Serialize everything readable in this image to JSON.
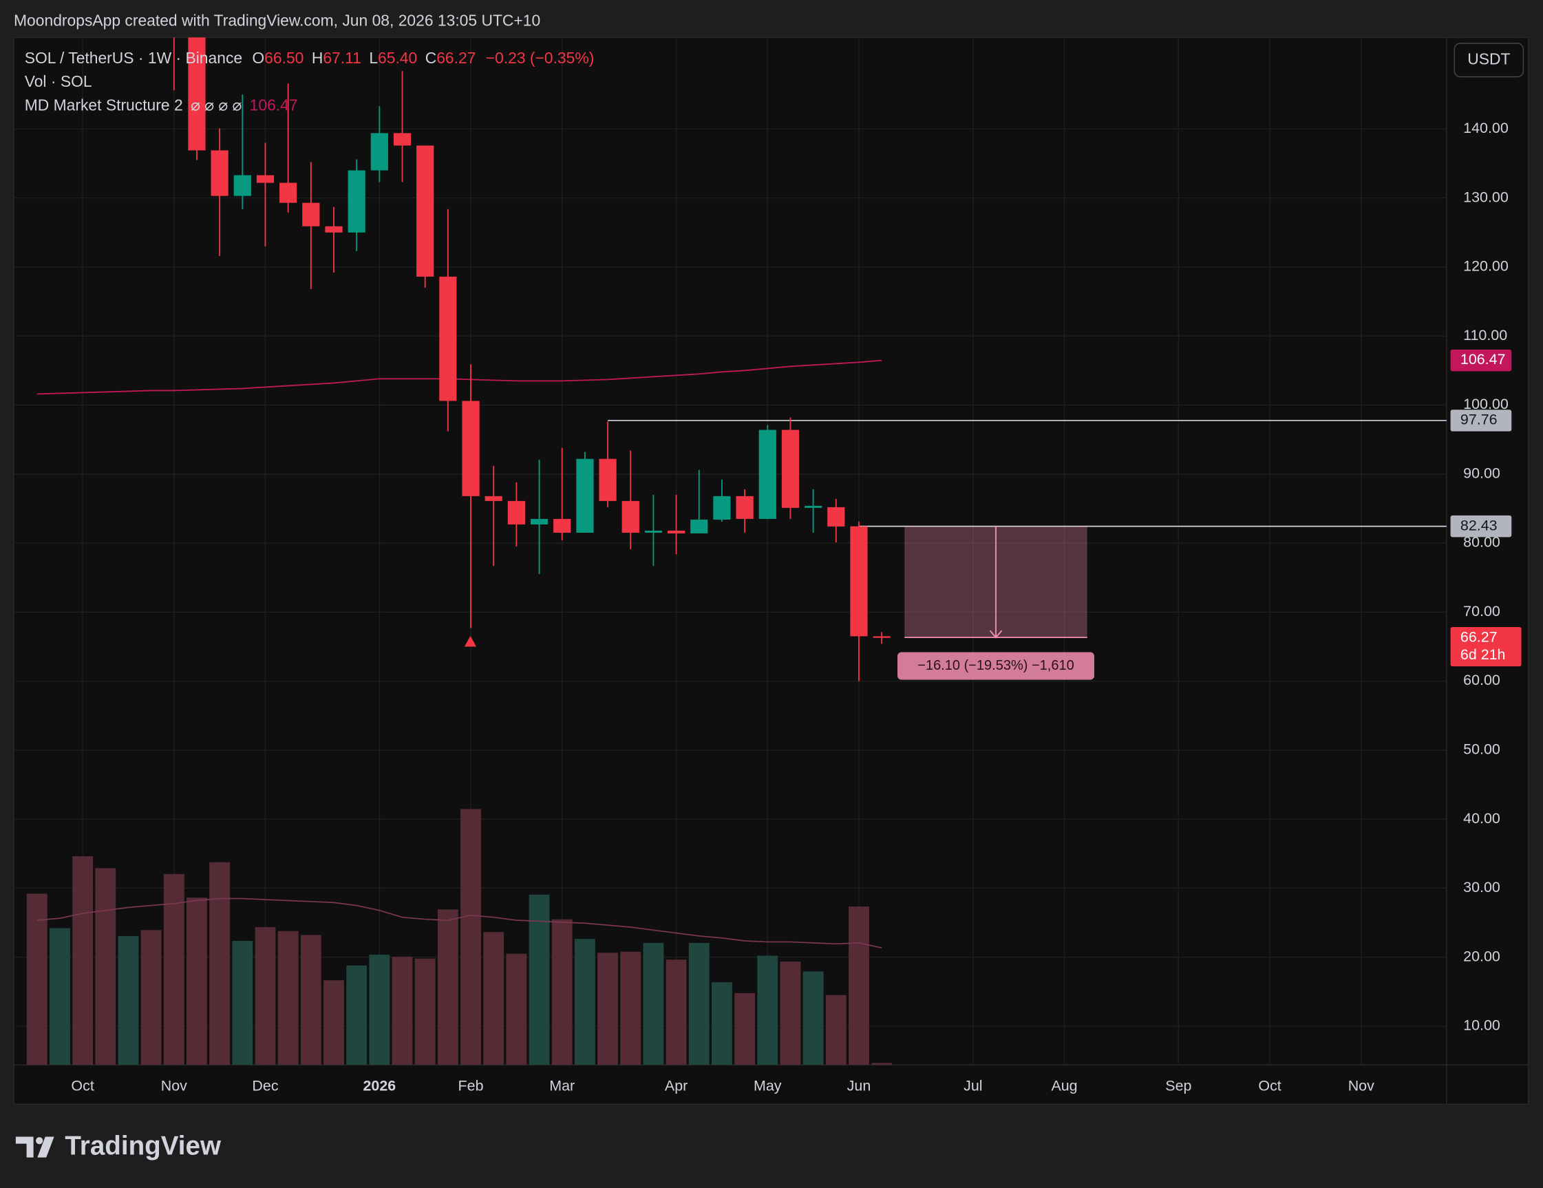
{
  "header": {
    "caption": "MoondropsApp created with TradingView.com, Jun 08, 2026 13:05 UTC+10"
  },
  "legend": {
    "symbol": "SOL / TetherUS · 1W · Binance",
    "ohlc": [
      {
        "key": "O",
        "value": "66.50"
      },
      {
        "key": "H",
        "value": "67.11"
      },
      {
        "key": "L",
        "value": "65.40"
      },
      {
        "key": "C",
        "value": "66.27"
      }
    ],
    "change": "−0.23 (−0.35%)",
    "volume": "Vol · SOL",
    "indicator": "MD Market Structure 2",
    "params": "⌀ ⌀ ⌀ ⌀",
    "indicator_value": "106.47"
  },
  "currency_button": "USDT",
  "logo": "TradingView",
  "chart_data": {
    "type": "candlestick",
    "categories": [
      null,
      null,
      "Oct",
      null,
      null,
      null,
      "Nov",
      null,
      null,
      null,
      "Dec",
      null,
      null,
      null,
      null,
      "2026",
      null,
      null,
      null,
      "Feb",
      null,
      null,
      null,
      "Mar",
      null,
      null,
      null,
      null,
      "Apr",
      null,
      null,
      null,
      "May",
      null,
      null,
      null,
      "Jun",
      null,
      null,
      null,
      null,
      "Jul",
      null,
      null,
      null,
      "Aug",
      null,
      null,
      null,
      null,
      "Sep",
      null,
      null,
      null,
      "Oct",
      null,
      null,
      null,
      "Nov",
      null,
      null,
      null
    ],
    "open": [
      null,
      null,
      null,
      null,
      null,
      null,
      170,
      156,
      136.9,
      130.3,
      133.3,
      132.2,
      129.3,
      125.9,
      125.0,
      134.0,
      139.4,
      137.6,
      118.6,
      100.6,
      86.8,
      86.1,
      82.7,
      83.5,
      81.5,
      92.2,
      86.1,
      81.5,
      81.8,
      81.4,
      83.4,
      86.8,
      83.5,
      96.4,
      85.1,
      85.2,
      82.43,
      66.5,
      null,
      null,
      null,
      null,
      null,
      null,
      null,
      null,
      null,
      null,
      null,
      null,
      null,
      null,
      null,
      null,
      null,
      null,
      null,
      null,
      null,
      null,
      null,
      null
    ],
    "high": [
      null,
      null,
      null,
      null,
      null,
      null,
      175,
      158,
      140.1,
      145.0,
      138.0,
      146.6,
      135.2,
      128.7,
      135.6,
      143.3,
      148.4,
      137.6,
      128.4,
      105.9,
      91.2,
      88.8,
      92.1,
      93.8,
      93.2,
      97.6,
      93.4,
      87.0,
      87.0,
      90.6,
      89.2,
      87.8,
      97.1,
      98.2,
      87.8,
      86.4,
      83.1,
      67.11,
      null,
      null,
      null,
      null,
      null,
      null,
      null,
      null,
      null,
      null,
      null,
      null,
      null,
      null,
      null,
      null,
      null,
      null,
      null,
      null,
      null,
      null,
      null,
      null
    ],
    "low": [
      null,
      null,
      null,
      null,
      null,
      null,
      145.6,
      135.5,
      121.6,
      128.4,
      123.0,
      127.9,
      116.8,
      119.2,
      122.3,
      132.3,
      132.3,
      117.0,
      96.2,
      67.7,
      76.7,
      79.5,
      75.5,
      80.4,
      81.5,
      85.2,
      79.1,
      76.7,
      78.4,
      81.5,
      83.1,
      81.5,
      83.5,
      83.5,
      81.5,
      80.1,
      60.0,
      65.4,
      null,
      null,
      null,
      null,
      null,
      null,
      null,
      null,
      null,
      null,
      null,
      null,
      null,
      null,
      null,
      null,
      null,
      null,
      null,
      null,
      null,
      null,
      null,
      null
    ],
    "close": [
      null,
      null,
      null,
      null,
      null,
      null,
      158,
      136.9,
      130.3,
      133.3,
      132.2,
      129.3,
      125.9,
      125.0,
      134.0,
      139.4,
      137.6,
      118.6,
      100.6,
      86.8,
      86.1,
      82.7,
      83.5,
      81.5,
      92.2,
      86.1,
      81.5,
      81.8,
      81.4,
      83.4,
      86.8,
      83.5,
      96.4,
      85.1,
      85.4,
      82.4,
      66.5,
      66.27,
      null,
      null,
      null,
      null,
      null,
      null,
      null,
      null,
      null,
      null,
      null,
      null,
      null,
      null,
      null,
      null,
      null,
      null,
      null,
      null,
      null,
      null,
      null,
      null
    ],
    "up_color": "#089981",
    "down_color": "#f23645",
    "ma": {
      "color": "#c2185b",
      "values": [
        101.6,
        101.7,
        101.8,
        101.9,
        102.0,
        102.1,
        102.1,
        102.2,
        102.3,
        102.4,
        102.6,
        102.8,
        103.0,
        103.2,
        103.5,
        103.8,
        103.8,
        103.8,
        103.8,
        103.7,
        103.6,
        103.5,
        103.5,
        103.5,
        103.6,
        103.7,
        103.9,
        104.1,
        104.3,
        104.5,
        104.8,
        105.0,
        105.3,
        105.6,
        105.8,
        106.0,
        106.2,
        106.47
      ]
    },
    "volume": {
      "values": [
        174,
        139,
        212,
        200,
        131,
        137,
        194,
        170,
        206,
        126,
        140,
        136,
        132,
        86,
        101,
        112,
        110,
        108,
        158,
        260,
        135,
        113,
        173,
        148,
        128,
        114,
        115,
        124,
        107,
        124,
        84,
        73,
        111,
        105,
        95,
        71,
        161,
        2
      ],
      "colors": [
        "#552b36",
        "#1f4740",
        "#552b36",
        "#552b36",
        "#1f4740",
        "#552b36",
        "#552b36",
        "#552b36",
        "#552b36",
        "#1f4740",
        "#552b36",
        "#552b36",
        "#552b36",
        "#552b36",
        "#1f4740",
        "#1f4740",
        "#552b36",
        "#552b36",
        "#552b36",
        "#552b36",
        "#552b36",
        "#552b36",
        "#1f4740",
        "#552b36",
        "#1f4740",
        "#552b36",
        "#552b36",
        "#1f4740",
        "#552b36",
        "#1f4740",
        "#1f4740",
        "#552b36",
        "#1f4740",
        "#552b36",
        "#1f4740",
        "#552b36",
        "#552b36",
        "#552b36"
      ],
      "ma_color": "#7b3850",
      "ma_values": [
        147,
        149,
        154,
        157,
        160,
        162,
        164,
        167,
        169,
        169,
        168,
        167,
        166,
        165,
        162,
        157,
        150,
        148,
        147,
        152,
        150,
        147,
        146,
        145,
        144,
        142,
        140,
        137,
        134,
        131,
        129,
        126,
        125,
        125,
        124,
        123,
        124,
        119
      ]
    },
    "ylim": [
      4.39,
      153.26
    ],
    "yticks": [
      {
        "value": 10,
        "label": "10.00"
      },
      {
        "value": 20,
        "label": "20.00"
      },
      {
        "value": 30,
        "label": "30.00"
      },
      {
        "value": 40,
        "label": "40.00"
      },
      {
        "value": 50,
        "label": "50.00"
      },
      {
        "value": 60,
        "label": "60.00"
      },
      {
        "value": 70,
        "label": "70.00"
      },
      {
        "value": 80,
        "label": "80.00"
      },
      {
        "value": 90,
        "label": "90.00"
      },
      {
        "value": 100,
        "label": "100.00"
      },
      {
        "value": 110,
        "label": "110.00"
      },
      {
        "value": 120,
        "label": "120.00"
      },
      {
        "value": 130,
        "label": "130.00"
      },
      {
        "value": 140,
        "label": "140.00"
      }
    ],
    "grid": true,
    "price_lines": [
      {
        "value": 97.76,
        "color": "#d1d4dc"
      },
      {
        "value": 82.43,
        "color": "#d1d4dc"
      }
    ],
    "price_labels": [
      {
        "value": 106.47,
        "color": "#c2185b"
      },
      {
        "value": 97.76,
        "color": "#b2b5be"
      },
      {
        "value": 82.43,
        "color": "#b2b5be"
      },
      {
        "value": 66.27,
        "color": "#f23645",
        "countdown": "6d 21h"
      }
    ],
    "measure": {
      "from": 82.43,
      "to": 66.33,
      "label": "−16.10 (−19.53%) −1,610",
      "color": "#f48fb1"
    }
  }
}
